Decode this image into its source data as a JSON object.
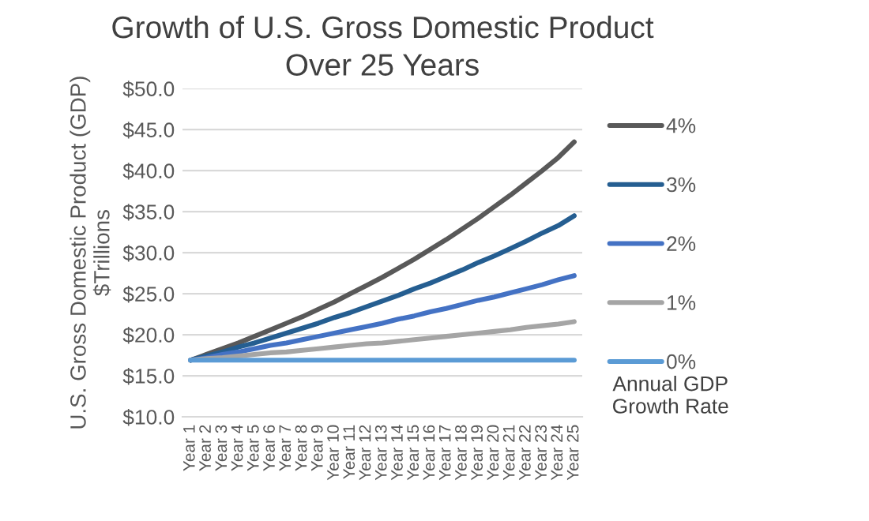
{
  "chart_data": {
    "type": "line",
    "title": "Growth of U.S. Gross Domestic Product\nOver 25 Years",
    "ylabel": "U.S. Gross Domestic Product (GDP)\n$Trillions",
    "legend_title": "Annual GDP\nGrowth Rate",
    "categories": [
      "Year 1",
      "Year 2",
      "Year 3",
      "Year 4",
      "Year 5",
      "Year 6",
      "Year 7",
      "Year 8",
      "Year 9",
      "Year 10",
      "Year 11",
      "Year 12",
      "Year 13",
      "Year 14",
      "Year 15",
      "Year 16",
      "Year 17",
      "Year 18",
      "Year 19",
      "Year 20",
      "Year 21",
      "Year 22",
      "Year 23",
      "Year 24",
      "Year 25"
    ],
    "series": [
      {
        "name": "4%",
        "color": "#595959",
        "values": [
          16.9,
          17.6,
          18.3,
          19.0,
          19.8,
          20.6,
          21.4,
          22.2,
          23.1,
          24.0,
          25.0,
          26.0,
          27.0,
          28.1,
          29.2,
          30.4,
          31.6,
          32.9,
          34.2,
          35.6,
          37.0,
          38.5,
          40.0,
          41.6,
          43.5
        ]
      },
      {
        "name": "3%",
        "color": "#255e91",
        "values": [
          16.9,
          17.4,
          17.9,
          18.5,
          19.0,
          19.6,
          20.2,
          20.8,
          21.4,
          22.1,
          22.7,
          23.4,
          24.1,
          24.8,
          25.6,
          26.3,
          27.1,
          27.9,
          28.8,
          29.6,
          30.5,
          31.4,
          32.4,
          33.3,
          34.5
        ]
      },
      {
        "name": "2%",
        "color": "#4472c4",
        "values": [
          16.9,
          17.2,
          17.6,
          17.9,
          18.3,
          18.7,
          19.0,
          19.4,
          19.8,
          20.2,
          20.6,
          21.0,
          21.4,
          21.9,
          22.3,
          22.8,
          23.2,
          23.7,
          24.2,
          24.6,
          25.1,
          25.6,
          26.1,
          26.7,
          27.2
        ]
      },
      {
        "name": "1%",
        "color": "#a5a5a5",
        "values": [
          16.9,
          17.1,
          17.2,
          17.4,
          17.6,
          17.8,
          17.9,
          18.1,
          18.3,
          18.5,
          18.7,
          18.9,
          19.0,
          19.2,
          19.4,
          19.6,
          19.8,
          20.0,
          20.2,
          20.4,
          20.6,
          20.9,
          21.1,
          21.3,
          21.6
        ]
      },
      {
        "name": "0%",
        "color": "#5b9bd5",
        "values": [
          16.9,
          16.9,
          16.9,
          16.9,
          16.9,
          16.9,
          16.9,
          16.9,
          16.9,
          16.9,
          16.9,
          16.9,
          16.9,
          16.9,
          16.9,
          16.9,
          16.9,
          16.9,
          16.9,
          16.9,
          16.9,
          16.9,
          16.9,
          16.9,
          16.9
        ]
      }
    ],
    "ylim": [
      10,
      50
    ],
    "yticks": [
      {
        "value": 10,
        "label": "$10.0"
      },
      {
        "value": 15,
        "label": "$15.0"
      },
      {
        "value": 20,
        "label": "$20.0"
      },
      {
        "value": 25,
        "label": "$25.0"
      },
      {
        "value": 30,
        "label": "$30.0"
      },
      {
        "value": 35,
        "label": "$35.0"
      },
      {
        "value": 40,
        "label": "$40.0"
      },
      {
        "value": 45,
        "label": "$45.0"
      },
      {
        "value": 50,
        "label": "$50.0"
      }
    ],
    "grid": "y",
    "legend": "right"
  }
}
